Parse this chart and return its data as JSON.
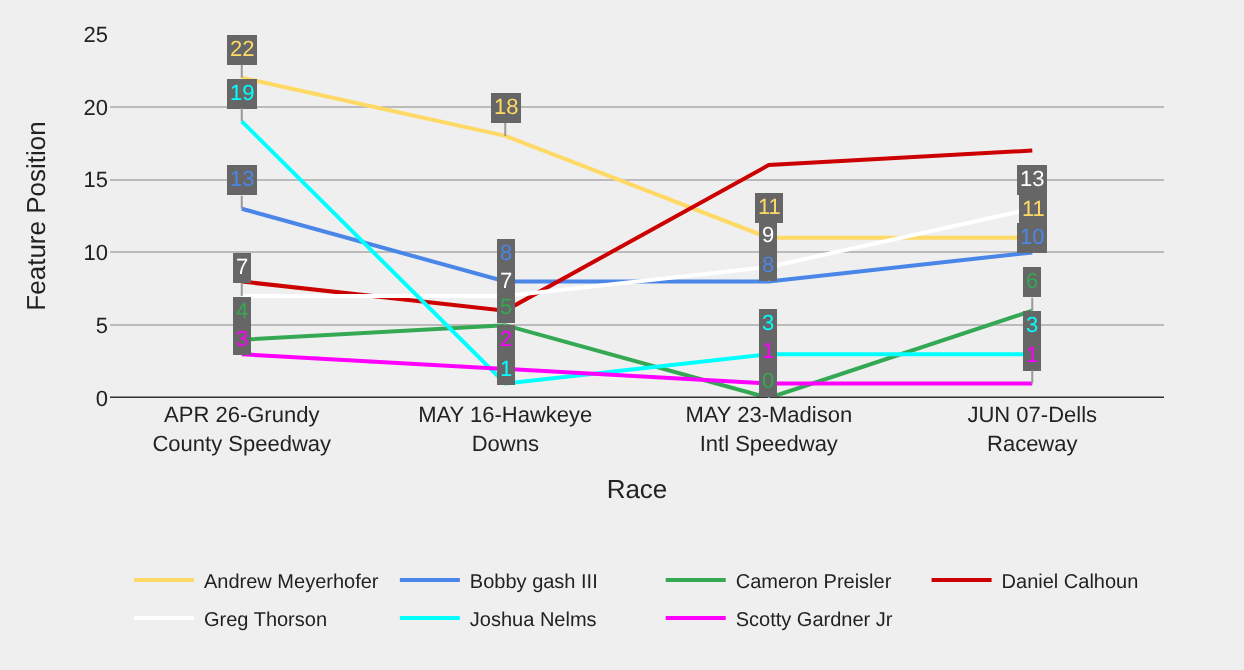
{
  "chart_data": {
    "type": "line",
    "xlabel": "Race",
    "ylabel": "Feature Position",
    "categories": [
      "APR 26-Grundy County Speedway",
      "MAY 16-Hawkeye Downs",
      "MAY 23-Madison Intl Speedway",
      "JUN 07-Dells Raceway"
    ],
    "series": [
      {
        "name": "Andrew Meyerhofer",
        "color": "#ffd966",
        "values": [
          22,
          18,
          11,
          11
        ],
        "value_labels": [
          "22",
          "18",
          "11",
          "11"
        ]
      },
      {
        "name": "Bobby gash III",
        "color": "#4a86e8",
        "values": [
          13,
          8,
          8,
          10
        ],
        "value_labels": [
          "13",
          "8",
          "8",
          "10"
        ]
      },
      {
        "name": "Cameron Preisler",
        "color": "#34a853",
        "values": [
          4,
          5,
          0,
          6
        ],
        "value_labels": [
          "4",
          "5",
          "0",
          "6"
        ]
      },
      {
        "name": "Daniel Calhoun",
        "color": "#cc0000",
        "values": [
          8,
          6,
          16,
          17
        ]
      },
      {
        "name": "Greg Thorson",
        "color": "#ffffff",
        "values": [
          7,
          7,
          9,
          13
        ],
        "value_labels": [
          "7",
          "7",
          "9",
          "13"
        ]
      },
      {
        "name": "Joshua Nelms",
        "color": "#00ffff",
        "values": [
          19,
          1,
          3,
          3
        ],
        "value_labels": [
          "19",
          "1",
          "3",
          "3"
        ]
      },
      {
        "name": "Scotty Gardner Jr",
        "color": "#ff00ff",
        "values": [
          3,
          2,
          1,
          1
        ],
        "value_labels": [
          "3",
          "2",
          "1",
          "1"
        ]
      }
    ],
    "ylim": [
      0,
      25
    ],
    "yticks": [
      0,
      5,
      10,
      15,
      20,
      25
    ],
    "grid": "y",
    "legend": "bottom",
    "line_style": "solid"
  }
}
